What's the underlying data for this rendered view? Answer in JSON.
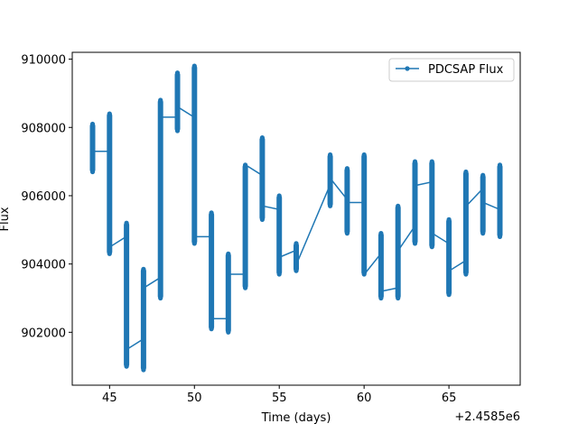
{
  "chart_data": {
    "type": "line",
    "title": "",
    "xlabel": "Time (days)",
    "ylabel": "Flux",
    "x_offset_label": "+2.4585e6",
    "xlim": [
      42.8,
      69.2
    ],
    "ylim": [
      900450,
      910200
    ],
    "x_ticks": [
      45,
      50,
      55,
      60,
      65
    ],
    "x_tick_labels": [
      "45",
      "50",
      "55",
      "60",
      "65"
    ],
    "y_ticks": [
      902000,
      904000,
      906000,
      908000,
      910000
    ],
    "y_tick_labels": [
      "902000",
      "904000",
      "906000",
      "908000",
      "910000"
    ],
    "grid": false,
    "legend_position": "upper-right",
    "series_color": "#1f77b4",
    "series": [
      {
        "name": "PDCSAP Flux",
        "segments": [
          {
            "x": 44.0,
            "y_min": 906700,
            "y_max": 908100,
            "start": 907600,
            "end": 907300
          },
          {
            "x": 45.0,
            "y_min": 904300,
            "y_max": 908400,
            "start": 907300,
            "end": 904500
          },
          {
            "x": 46.0,
            "y_min": 901000,
            "y_max": 905200,
            "start": 904800,
            "end": 901500
          },
          {
            "x": 47.0,
            "y_min": 900900,
            "y_max": 903850,
            "start": 901800,
            "end": 903300
          },
          {
            "x": 48.0,
            "y_min": 903000,
            "y_max": 908800,
            "start": 903600,
            "end": 908300
          },
          {
            "x": 49.0,
            "y_min": 907900,
            "y_max": 909600,
            "start": 908300,
            "end": 908600
          },
          {
            "x": 50.0,
            "y_min": 904600,
            "y_max": 909800,
            "start": 908300,
            "end": 904800
          },
          {
            "x": 51.0,
            "y_min": 902100,
            "y_max": 905500,
            "start": 904800,
            "end": 902400
          },
          {
            "x": 52.0,
            "y_min": 902000,
            "y_max": 904300,
            "start": 902400,
            "end": 903700
          },
          {
            "x": 53.0,
            "y_min": 903300,
            "y_max": 906900,
            "start": 903700,
            "end": 906900
          },
          {
            "x": 54.0,
            "y_min": 905300,
            "y_max": 907700,
            "start": 906600,
            "end": 905700
          },
          {
            "x": 55.0,
            "y_min": 903700,
            "y_max": 906000,
            "start": 905600,
            "end": 904200
          },
          {
            "x": 56.0,
            "y_min": 903800,
            "y_max": 904600,
            "start": 904400,
            "end": 904000
          },
          {
            "x": 58.0,
            "y_min": 905700,
            "y_max": 907200,
            "start": 906300,
            "end": 906500
          },
          {
            "x": 59.0,
            "y_min": 904900,
            "y_max": 906800,
            "start": 905900,
            "end": 905800
          },
          {
            "x": 60.0,
            "y_min": 903700,
            "y_max": 907200,
            "start": 905800,
            "end": 903700
          },
          {
            "x": 61.0,
            "y_min": 903000,
            "y_max": 904900,
            "start": 904300,
            "end": 903200
          },
          {
            "x": 62.0,
            "y_min": 903000,
            "y_max": 905700,
            "start": 903300,
            "end": 904400
          },
          {
            "x": 63.0,
            "y_min": 904600,
            "y_max": 907000,
            "start": 905100,
            "end": 906300
          },
          {
            "x": 64.0,
            "y_min": 904500,
            "y_max": 907000,
            "start": 906400,
            "end": 904900
          },
          {
            "x": 65.0,
            "y_min": 903100,
            "y_max": 905300,
            "start": 904600,
            "end": 903800
          },
          {
            "x": 66.0,
            "y_min": 903700,
            "y_max": 906700,
            "start": 904100,
            "end": 905700
          },
          {
            "x": 67.0,
            "y_min": 904900,
            "y_max": 906600,
            "start": 906200,
            "end": 905800
          },
          {
            "x": 68.0,
            "y_min": 904800,
            "y_max": 906900,
            "start": 905600,
            "end": 905500
          }
        ]
      }
    ]
  }
}
